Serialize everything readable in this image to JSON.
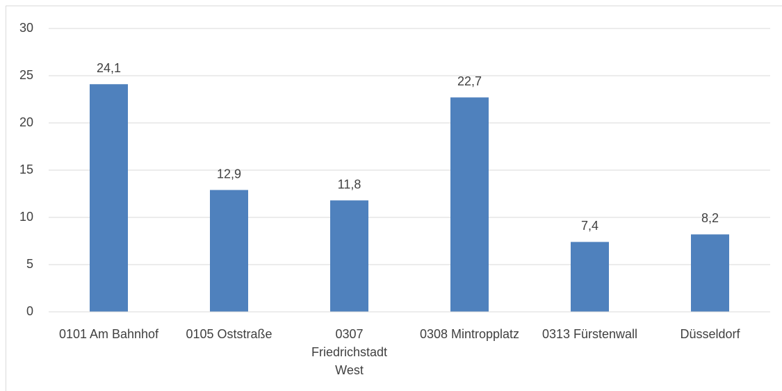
{
  "chart_data": {
    "type": "bar",
    "categories": [
      "0101 Am Bahnhof",
      "0105 Oststraße",
      "0307 Friedrichstadt West",
      "0308 Mintropplatz",
      "0313 Fürstenwall",
      "Düsseldorf"
    ],
    "values": [
      24.1,
      12.9,
      11.8,
      22.7,
      7.4,
      8.2
    ],
    "value_labels": [
      "24,1",
      "12,9",
      "11,8",
      "22,7",
      "7,4",
      "8,2"
    ],
    "color": "#4f81bd",
    "ylim": [
      0,
      30
    ],
    "yticks": [
      0,
      5,
      10,
      15,
      20,
      25,
      30
    ],
    "grid": true
  }
}
